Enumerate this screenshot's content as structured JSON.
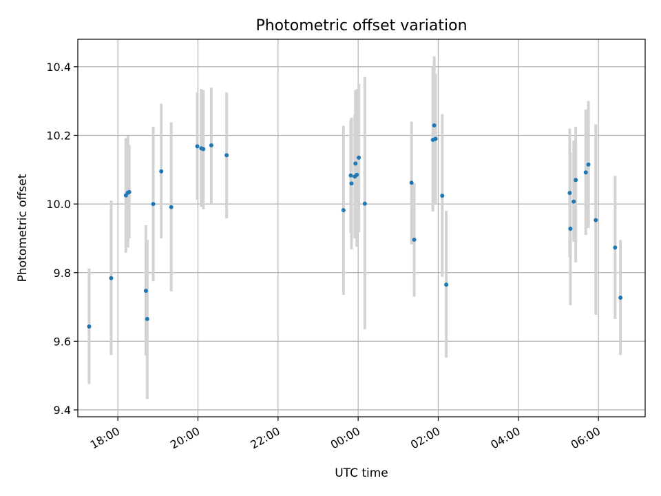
{
  "chart_data": {
    "type": "scatter",
    "title": "Photometric offset variation",
    "xlabel": "UTC time",
    "ylabel": "Photometric offset",
    "xlim": [
      "17:00",
      "07:10"
    ],
    "ylim": [
      9.38,
      10.48
    ],
    "x_ticks": [
      "18:00",
      "20:00",
      "22:00",
      "00:00",
      "02:00",
      "04:00",
      "06:00"
    ],
    "y_ticks": [
      "9.4",
      "9.6",
      "9.8",
      "10.0",
      "10.2",
      "10.4"
    ],
    "grid": true,
    "point_color": "#1f77b4",
    "errorbar_color": "#d3d3d3",
    "points": [
      {
        "x": "17:17",
        "y": 9.643,
        "ylo": 9.475,
        "yhi": 9.812
      },
      {
        "x": "17:50",
        "y": 9.784,
        "ylo": 9.56,
        "yhi": 10.01
      },
      {
        "x": "18:12",
        "y": 10.025,
        "ylo": 9.858,
        "yhi": 10.192
      },
      {
        "x": "18:15",
        "y": 10.033,
        "ylo": 9.873,
        "yhi": 10.198
      },
      {
        "x": "18:17",
        "y": 10.035,
        "ylo": 9.9,
        "yhi": 10.172
      },
      {
        "x": "18:42",
        "y": 9.747,
        "ylo": 9.558,
        "yhi": 9.938
      },
      {
        "x": "18:44",
        "y": 9.665,
        "ylo": 9.432,
        "yhi": 9.895
      },
      {
        "x": "18:53",
        "y": 10.0,
        "ylo": 9.775,
        "yhi": 10.225
      },
      {
        "x": "19:05",
        "y": 10.095,
        "ylo": 9.9,
        "yhi": 10.292
      },
      {
        "x": "19:20",
        "y": 9.991,
        "ylo": 9.745,
        "yhi": 10.238
      },
      {
        "x": "19:59",
        "y": 10.168,
        "ylo": 10.012,
        "yhi": 10.325
      },
      {
        "x": "20:05",
        "y": 10.162,
        "ylo": 9.992,
        "yhi": 10.335
      },
      {
        "x": "20:08",
        "y": 10.16,
        "ylo": 9.985,
        "yhi": 10.332
      },
      {
        "x": "20:20",
        "y": 10.171,
        "ylo": 10.002,
        "yhi": 10.339
      },
      {
        "x": "20:43",
        "y": 10.142,
        "ylo": 9.958,
        "yhi": 10.325
      },
      {
        "x": "23:38",
        "y": 9.982,
        "ylo": 9.735,
        "yhi": 10.228
      },
      {
        "x": "23:49",
        "y": 10.083,
        "ylo": 9.915,
        "yhi": 10.245
      },
      {
        "x": "23:50",
        "y": 10.06,
        "ylo": 9.868,
        "yhi": 10.252
      },
      {
        "x": "23:55",
        "y": 10.08,
        "ylo": 9.9,
        "yhi": 10.26
      },
      {
        "x": "23:56",
        "y": 10.118,
        "ylo": 9.905,
        "yhi": 10.332
      },
      {
        "x": "23:58",
        "y": 10.085,
        "ylo": 9.875,
        "yhi": 10.335
      },
      {
        "x": "00:01",
        "y": 10.135,
        "ylo": 9.918,
        "yhi": 10.35
      },
      {
        "x": "00:10",
        "y": 10.001,
        "ylo": 9.635,
        "yhi": 10.37
      },
      {
        "x": "01:20",
        "y": 10.062,
        "ylo": 9.882,
        "yhi": 10.24
      },
      {
        "x": "01:24",
        "y": 9.896,
        "ylo": 9.73,
        "yhi": 10.06
      },
      {
        "x": "01:52",
        "y": 10.187,
        "ylo": 9.978,
        "yhi": 10.4
      },
      {
        "x": "01:54",
        "y": 10.229,
        "ylo": 10.03,
        "yhi": 10.43
      },
      {
        "x": "01:56",
        "y": 10.19,
        "ylo": 10.0,
        "yhi": 10.38
      },
      {
        "x": "02:06",
        "y": 10.024,
        "ylo": 9.788,
        "yhi": 10.262
      },
      {
        "x": "02:12",
        "y": 9.765,
        "ylo": 9.552,
        "yhi": 9.98
      },
      {
        "x": "05:17",
        "y": 10.032,
        "ylo": 9.845,
        "yhi": 10.22
      },
      {
        "x": "05:18",
        "y": 9.928,
        "ylo": 9.705,
        "yhi": 10.15
      },
      {
        "x": "05:23",
        "y": 10.007,
        "ylo": 9.89,
        "yhi": 10.185
      },
      {
        "x": "05:26",
        "y": 10.07,
        "ylo": 9.83,
        "yhi": 10.225
      },
      {
        "x": "05:41",
        "y": 10.092,
        "ylo": 9.91,
        "yhi": 10.275
      },
      {
        "x": "05:45",
        "y": 10.115,
        "ylo": 9.93,
        "yhi": 10.3
      },
      {
        "x": "05:56",
        "y": 9.953,
        "ylo": 9.677,
        "yhi": 10.232
      },
      {
        "x": "06:25",
        "y": 9.873,
        "ylo": 9.665,
        "yhi": 10.082
      },
      {
        "x": "06:33",
        "y": 9.727,
        "ylo": 9.56,
        "yhi": 9.895
      }
    ]
  }
}
